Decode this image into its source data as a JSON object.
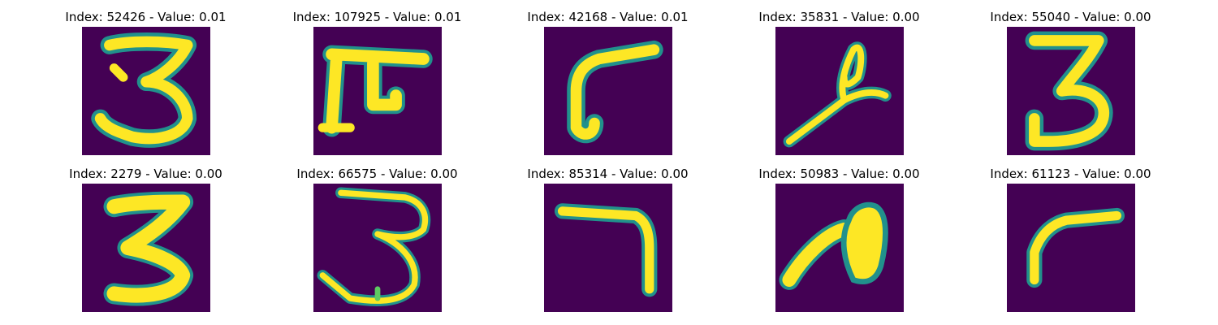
{
  "colors": {
    "background": "#440154",
    "stroke_edge": "#21918c",
    "stroke_mid": "#5ec962",
    "stroke_core": "#fde725"
  },
  "panels": [
    {
      "index": "52426",
      "value": "0.01",
      "title": "Index: 52426 - Value: 0.01",
      "depicts": "digit-3"
    },
    {
      "index": "107925",
      "value": "0.01",
      "title": "Index: 107925 - Value: 0.01",
      "depicts": "pi-like-glyph"
    },
    {
      "index": "42168",
      "value": "0.01",
      "title": "Index: 42168 - Value: 0.01",
      "depicts": "L-shaped-stroke"
    },
    {
      "index": "35831",
      "value": "0.00",
      "title": "Index: 35831 - Value: 0.00",
      "depicts": "looped-diagonal-stroke"
    },
    {
      "index": "55040",
      "value": "0.00",
      "title": "Index: 55040 - Value: 0.00",
      "depicts": "digit-3"
    },
    {
      "index": "2279",
      "value": "0.00",
      "title": "Index: 2279 - Value: 0.00",
      "depicts": "digit-3"
    },
    {
      "index": "66575",
      "value": "0.00",
      "title": "Index: 66575 - Value: 0.00",
      "depicts": "digit-3"
    },
    {
      "index": "85314",
      "value": "0.00",
      "title": "Index: 85314 - Value: 0.00",
      "depicts": "digit-7"
    },
    {
      "index": "50983",
      "value": "0.00",
      "title": "Index: 50983 - Value: 0.00",
      "depicts": "filled-loop-stroke"
    },
    {
      "index": "61123",
      "value": "0.00",
      "title": "Index: 61123 - Value: 0.00",
      "depicts": "L-shaped-stroke"
    }
  ]
}
